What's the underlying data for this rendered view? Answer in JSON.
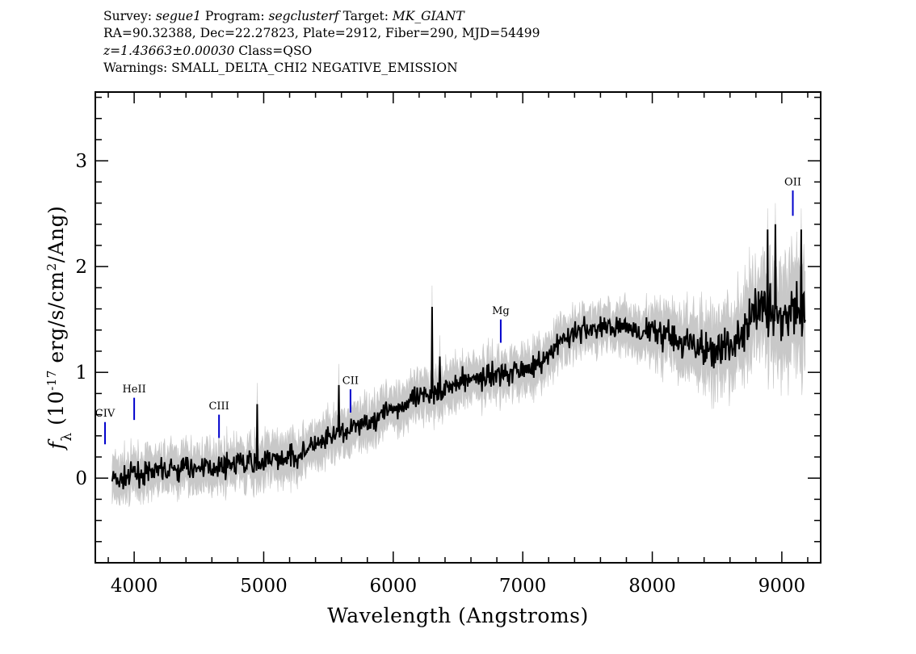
{
  "header": {
    "survey_label": "Survey:",
    "survey": "segue1",
    "program_label": "Program:",
    "program": "segclusterf",
    "target_label": "Target:",
    "target": "MK_GIANT",
    "line2": "RA=90.32388, Dec=22.27823, Plate=2912, Fiber=290, MJD=54499",
    "redshift": "z=1.43663±0.00030",
    "class_text": "Class=QSO",
    "warnings": "Warnings: SMALL_DELTA_CHI2 NEGATIVE_EMISSION"
  },
  "chart_data": {
    "type": "line",
    "xlabel": "Wavelength (Angstroms)",
    "ylabel": "f_λ (10^-17 erg/s/cm^2/Ang)",
    "xlim": [
      3700,
      9300
    ],
    "ylim": [
      -0.8,
      3.65
    ],
    "xticks": [
      4000,
      5000,
      6000,
      7000,
      8000,
      9000
    ],
    "yticks": [
      0,
      1,
      2,
      3
    ],
    "series": [
      {
        "color": "#c8c8c8",
        "role": "error band"
      },
      {
        "color": "#000000",
        "role": "flux",
        "x": [
          3830,
          3900,
          4000,
          4100,
          4200,
          4300,
          4400,
          4500,
          4600,
          4700,
          4800,
          4900,
          5000,
          5100,
          5200,
          5300,
          5400,
          5500,
          5600,
          5700,
          5800,
          5900,
          6000,
          6100,
          6200,
          6300,
          6400,
          6500,
          6600,
          6700,
          6800,
          6900,
          7000,
          7100,
          7200,
          7300,
          7400,
          7500,
          7600,
          7700,
          7800,
          7900,
          8000,
          8100,
          8200,
          8300,
          8400,
          8500,
          8600,
          8700,
          8800,
          8900,
          9000,
          9100,
          9180
        ],
        "y": [
          0.0,
          -0.02,
          0.03,
          0.05,
          0.06,
          0.08,
          0.09,
          0.1,
          0.11,
          0.12,
          0.13,
          0.14,
          0.16,
          0.18,
          0.2,
          0.24,
          0.3,
          0.36,
          0.42,
          0.48,
          0.54,
          0.6,
          0.65,
          0.7,
          0.75,
          0.8,
          0.85,
          0.9,
          0.93,
          0.96,
          0.98,
          1.0,
          1.03,
          1.08,
          1.13,
          1.3,
          1.36,
          1.4,
          1.42,
          1.42,
          1.42,
          1.4,
          1.38,
          1.35,
          1.3,
          1.25,
          1.2,
          1.22,
          1.25,
          1.35,
          1.6,
          1.6,
          1.5,
          1.55,
          1.55
        ]
      }
    ],
    "spikes": [
      {
        "x": 4950,
        "y": 0.7
      },
      {
        "x": 5580,
        "y": 0.88
      },
      {
        "x": 6300,
        "y": 1.62
      },
      {
        "x": 6360,
        "y": 1.15
      },
      {
        "x": 8890,
        "y": 2.35
      },
      {
        "x": 8950,
        "y": 2.4
      },
      {
        "x": 9150,
        "y": 2.35
      }
    ],
    "emission_lines": [
      {
        "label": "CIV",
        "x": 3775,
        "y_low": 0.32,
        "y_high": 0.53,
        "label_y": 0.58
      },
      {
        "label": "HeII",
        "x": 4000,
        "y_low": 0.55,
        "y_high": 0.76,
        "label_y": 0.81
      },
      {
        "label": "CIII",
        "x": 4655,
        "y_low": 0.38,
        "y_high": 0.6,
        "label_y": 0.65
      },
      {
        "label": "CII",
        "x": 5670,
        "y_low": 0.62,
        "y_high": 0.84,
        "label_y": 0.89
      },
      {
        "label": "Mg",
        "x": 6830,
        "y_low": 1.28,
        "y_high": 1.5,
        "label_y": 1.55
      },
      {
        "label": "OII",
        "x": 9085,
        "y_low": 2.48,
        "y_high": 2.72,
        "label_y": 2.77
      }
    ],
    "line_color": "#0000cc"
  }
}
